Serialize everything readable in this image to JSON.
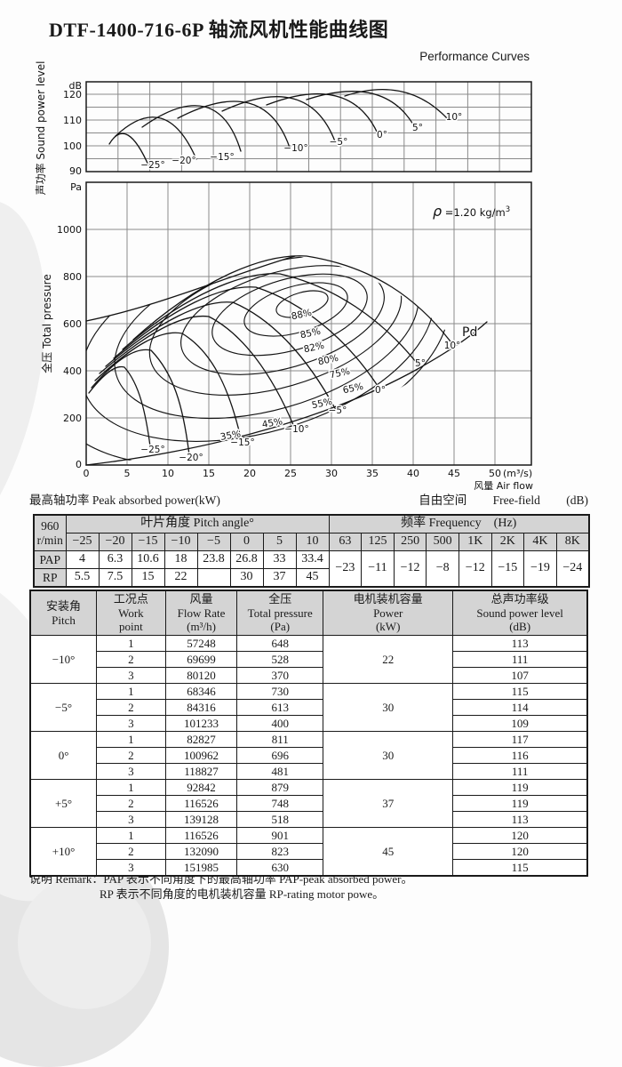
{
  "page": {
    "title": "DTF-1400-716-6P 轴流风机性能曲线图",
    "subtitle": "Performance Curves",
    "peak_power_label": "最高轴功率 Peak absorbed power(kW)",
    "free_field_cn": "自由空间",
    "free_field_en": "Free-field",
    "free_field_unit": "(dB)",
    "remark_line1": "说明 Remark：PAP 表示不同角度下的最高轴功率 PAP-peak absorbed power。",
    "remark_line2": "RP 表示不同角度的电机装机容量 RP-rating motor powe。"
  },
  "chart_data": [
    {
      "type": "line",
      "id": "sound-power-level",
      "title": "声功率 Sound power level",
      "y_unit": "dB",
      "y_ticks": [
        90,
        100,
        110,
        120
      ],
      "y_range": [
        87,
        125
      ],
      "grid": true,
      "series": [
        {
          "name": "−25°",
          "peak_dB": 102
        },
        {
          "name": "−20°",
          "peak_dB": 107
        },
        {
          "name": "−15°",
          "peak_dB": 111.5
        },
        {
          "name": "−10°",
          "peak_dB": 114.5
        },
        {
          "name": "−5°",
          "peak_dB": 117
        },
        {
          "name": "0°",
          "peak_dB": 118.5
        },
        {
          "name": "5°",
          "peak_dB": 120
        },
        {
          "name": "10°",
          "peak_dB": 121
        }
      ]
    },
    {
      "type": "line",
      "id": "pressure-vs-flow",
      "x_label": "风量 Air flow",
      "x_unit": "(m³/s)",
      "x_ticks": [
        0,
        5,
        10,
        15,
        20,
        25,
        30,
        35,
        40,
        45,
        50
      ],
      "x_range": [
        0,
        54
      ],
      "y_label": "全压 Total pressure",
      "y_unit": "Pa",
      "y_ticks": [
        0,
        200,
        400,
        600,
        800,
        1000
      ],
      "y_range": [
        0,
        1190
      ],
      "grid": true,
      "density_label": {
        "symbol": "ρ",
        "value": " =1.20 kg/m",
        "sup": "3"
      },
      "dynamic_pressure_label": "Pd",
      "efficiency_contours": [
        "88%",
        "85%",
        "82%",
        "80%",
        "75%",
        "65%",
        "55%",
        "45%",
        "35%"
      ],
      "pitch_curves": [
        {
          "name": "−25°"
        },
        {
          "name": "−20°"
        },
        {
          "name": "−15°"
        },
        {
          "name": "−10°"
        },
        {
          "name": "−5°"
        },
        {
          "name": "0°"
        },
        {
          "name": "5°"
        },
        {
          "name": "10°"
        }
      ]
    }
  ],
  "table1": {
    "rpm_lines": [
      "960",
      "r/min"
    ],
    "pitch_header": "叶片角度 Pitch angle°",
    "freq_header": "频率 Frequency　(Hz)",
    "pitch_angles": [
      "−25",
      "−20",
      "−15",
      "−10",
      "−5",
      "0",
      "5",
      "10"
    ],
    "pap_label": "PAP",
    "pap_values": [
      "4",
      "6.3",
      "10.6",
      "18",
      "23.8",
      "26.8",
      "33",
      "33.4"
    ],
    "rp_label": "RP",
    "rp_values": [
      "5.5",
      "7.5",
      "15",
      "22",
      "",
      "30",
      "37",
      "45"
    ],
    "freq_labels": [
      "63",
      "125",
      "250",
      "500",
      "1K",
      "2K",
      "4K",
      "8K"
    ],
    "freq_corrections": [
      "−23",
      "−11",
      "−12",
      "−8",
      "−12",
      "−15",
      "−19",
      "−24"
    ]
  },
  "table2": {
    "headers": {
      "pitch": {
        "lines": [
          "安装角",
          "Pitch"
        ]
      },
      "work_point": {
        "lines": [
          "工况点",
          "Work",
          "point"
        ]
      },
      "flow": {
        "lines": [
          "风量",
          "Flow Rate",
          "(m³/h)"
        ]
      },
      "pressure": {
        "lines": [
          "全压",
          "Total pressure",
          "(Pa)"
        ]
      },
      "power": {
        "lines": [
          "电机装机容量",
          "Power",
          "(kW)"
        ]
      },
      "spl": {
        "lines": [
          "总声功率级",
          "Sound power level",
          "(dB)"
        ]
      }
    },
    "groups": [
      {
        "pitch": "−10°",
        "power": "22",
        "rows": [
          [
            "1",
            "57248",
            "648",
            "113"
          ],
          [
            "2",
            "69699",
            "528",
            "111"
          ],
          [
            "3",
            "80120",
            "370",
            "107"
          ]
        ]
      },
      {
        "pitch": "−5°",
        "power": "30",
        "rows": [
          [
            "1",
            "68346",
            "730",
            "115"
          ],
          [
            "2",
            "84316",
            "613",
            "114"
          ],
          [
            "3",
            "101233",
            "400",
            "109"
          ]
        ]
      },
      {
        "pitch": "0°",
        "power": "30",
        "rows": [
          [
            "1",
            "82827",
            "811",
            "117"
          ],
          [
            "2",
            "100962",
            "696",
            "116"
          ],
          [
            "3",
            "118827",
            "481",
            "111"
          ]
        ]
      },
      {
        "pitch": "+5°",
        "power": "37",
        "rows": [
          [
            "1",
            "92842",
            "879",
            "119"
          ],
          [
            "2",
            "116526",
            "748",
            "119"
          ],
          [
            "3",
            "139128",
            "518",
            "113"
          ]
        ]
      },
      {
        "pitch": "+10°",
        "power": "45",
        "rows": [
          [
            "1",
            "116526",
            "901",
            "120"
          ],
          [
            "2",
            "132090",
            "823",
            "120"
          ],
          [
            "3",
            "151985",
            "630",
            "115"
          ]
        ]
      }
    ]
  }
}
